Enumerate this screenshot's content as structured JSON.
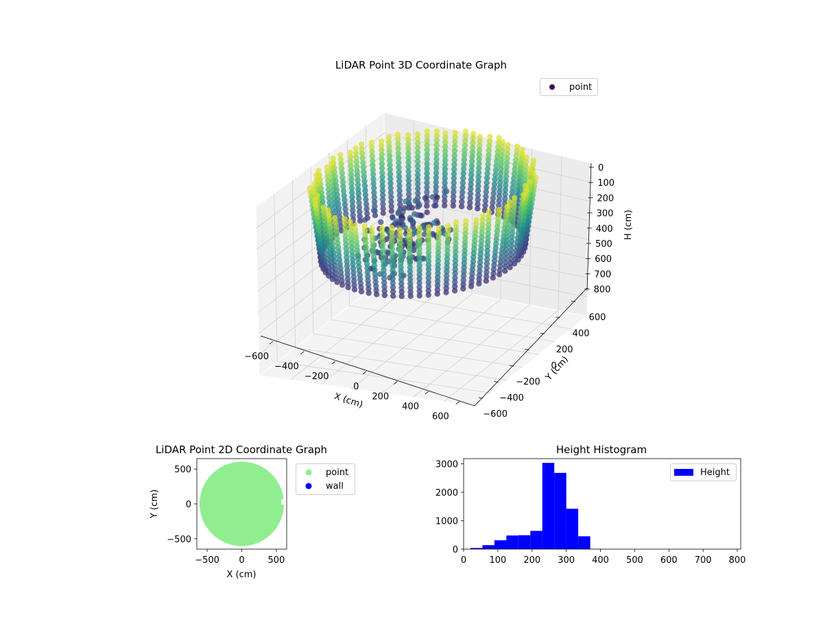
{
  "chart_data": [
    {
      "type": "scatter",
      "projection": "3d",
      "title": "LiDAR Point 3D Coordinate Graph",
      "xlabel": "X (cm)",
      "ylabel": "Y (cm)",
      "zlabel": "H (cm)",
      "xlim": [
        -650,
        650
      ],
      "ylim": [
        -650,
        650
      ],
      "zlim": [
        0,
        800
      ],
      "z_inverted": true,
      "x_ticks": [
        "−600",
        "−400",
        "−200",
        "0",
        "200",
        "400",
        "600"
      ],
      "y_ticks": [
        "−600",
        "−400",
        "−200",
        "0",
        "200",
        "400",
        "600"
      ],
      "z_ticks": [
        "0",
        "100",
        "200",
        "300",
        "400",
        "500",
        "600",
        "700",
        "800"
      ],
      "grid": true,
      "colormap": "viridis",
      "legend": {
        "placement": "top-right",
        "entries": [
          {
            "label": "point",
            "color": "#440154"
          }
        ]
      },
      "series": [
        {
          "name": "point",
          "shape": "cylindrical wall scan",
          "radius_range": [
            560,
            620
          ],
          "height_range": [
            0,
            340
          ],
          "angular_columns": 72
        }
      ]
    },
    {
      "type": "scatter",
      "title": "LiDAR Point 2D Coordinate Graph",
      "xlabel": "X (cm)",
      "ylabel": "Y (cm)",
      "xlim": [
        -650,
        650
      ],
      "ylim": [
        -650,
        650
      ],
      "x_ticks": [
        -500,
        0,
        500
      ],
      "y_ticks": [
        -500,
        0,
        500
      ],
      "legend": {
        "placement": "outside-right",
        "entries": [
          {
            "label": "point",
            "color": "#90ee90"
          },
          {
            "label": "wall",
            "color": "#0000ff"
          }
        ]
      },
      "series": [
        {
          "name": "point",
          "color": "#90ee90",
          "shape": "filled disc",
          "center": [
            0,
            0
          ],
          "radius": 610
        },
        {
          "name": "wall",
          "color": "#0000ff"
        }
      ]
    },
    {
      "type": "bar",
      "subtype": "histogram",
      "title": "Height Histogram",
      "xlabel": "",
      "ylabel": "",
      "xlim": [
        0,
        810
      ],
      "ylim": [
        0,
        3180
      ],
      "x_ticks": [
        0,
        100,
        200,
        300,
        400,
        500,
        600,
        700,
        800
      ],
      "y_ticks": [
        0,
        1000,
        2000,
        3000
      ],
      "color": "#0000ff",
      "legend": {
        "placement": "top-right",
        "entries": [
          {
            "label": "Height",
            "color": "#0000ff"
          }
        ]
      },
      "bins": [
        {
          "x0": 20,
          "x1": 55,
          "value": 40
        },
        {
          "x0": 55,
          "x1": 90,
          "value": 140
        },
        {
          "x0": 90,
          "x1": 125,
          "value": 310
        },
        {
          "x0": 125,
          "x1": 160,
          "value": 480
        },
        {
          "x0": 160,
          "x1": 195,
          "value": 490
        },
        {
          "x0": 195,
          "x1": 230,
          "value": 640
        },
        {
          "x0": 230,
          "x1": 265,
          "value": 3030
        },
        {
          "x0": 265,
          "x1": 300,
          "value": 2680
        },
        {
          "x0": 300,
          "x1": 335,
          "value": 1420
        },
        {
          "x0": 335,
          "x1": 370,
          "value": 450
        },
        {
          "x0": 370,
          "x1": 405,
          "value": 10
        }
      ]
    }
  ]
}
